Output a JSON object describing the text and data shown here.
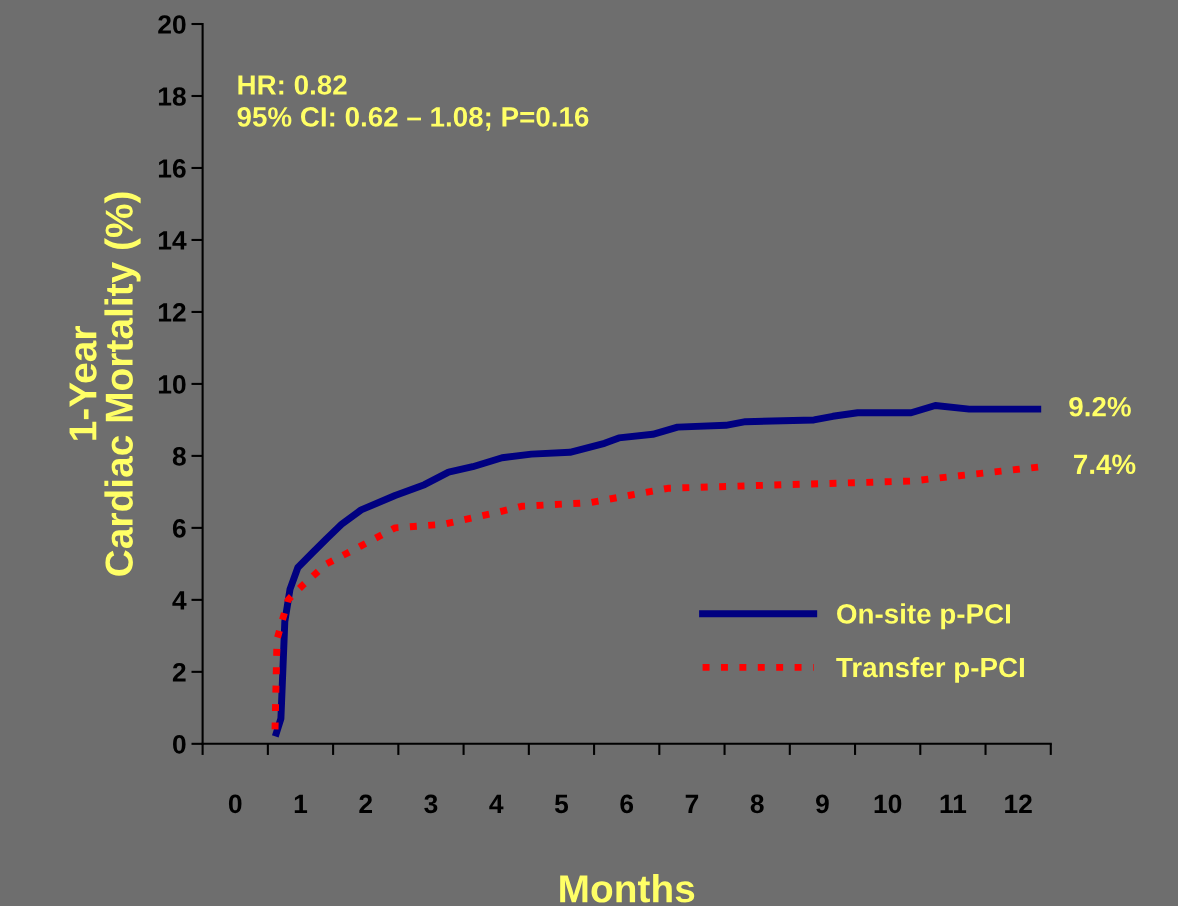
{
  "chart_data": {
    "type": "line",
    "xlabel": "Months",
    "ylabel": "1-Year\nCardiac Mortality (%)",
    "xlim": [
      -0.5,
      12.5
    ],
    "xticks": [
      {
        "value": -0.5,
        "label": null
      },
      0,
      {
        "value": 0.5,
        "label": null
      },
      1,
      {
        "value": 1.5,
        "label": null
      },
      2,
      {
        "value": 2.5,
        "label": null
      },
      3,
      {
        "value": 3.5,
        "label": null
      },
      4,
      {
        "value": 4.5,
        "label": null
      },
      5,
      {
        "value": 5.5,
        "label": null
      },
      6,
      {
        "value": 6.5,
        "label": null
      },
      7,
      {
        "value": 7.5,
        "label": null
      },
      8,
      {
        "value": 8.5,
        "label": null
      },
      9,
      {
        "value": 9.5,
        "label": null
      },
      10,
      {
        "value": 10.5,
        "label": null
      },
      11,
      {
        "value": 11.5,
        "label": null
      },
      12,
      {
        "value": 12.5,
        "label": null
      }
    ],
    "ylim": [
      0,
      20
    ],
    "yticks": [
      0,
      2,
      4,
      6,
      8,
      10,
      12,
      14,
      16,
      18,
      20
    ],
    "grid": false,
    "legend": "bottom right",
    "series": [
      {
        "name": "On-site p-PCI",
        "color": "#000080",
        "line_style": "solid",
        "x": [
          0.63,
          0.7,
          0.76,
          0.84,
          0.96,
          1.18,
          1.4,
          1.63,
          1.93,
          2.45,
          2.9,
          3.27,
          3.64,
          4.09,
          4.54,
          5.13,
          5.66,
          5.88,
          6.4,
          6.78,
          7.52,
          7.82,
          8.87,
          9.16,
          9.54,
          10.36,
          10.73,
          11.25,
          12.3
        ],
        "values": [
          0.3,
          0.7,
          3.4,
          4.3,
          4.9,
          5.3,
          5.7,
          6.1,
          6.5,
          6.9,
          7.2,
          7.55,
          7.7,
          7.95,
          8.05,
          8.1,
          8.35,
          8.5,
          8.6,
          8.8,
          8.85,
          8.95,
          9.0,
          9.1,
          9.2,
          9.2,
          9.4,
          9.3,
          9.3
        ]
      },
      {
        "name": "Transfer p-PCI",
        "color": "#ff0000",
        "line_style": "dotted",
        "x": [
          0.61,
          0.64,
          0.81,
          1.03,
          1.4,
          1.93,
          2.45,
          3.19,
          3.94,
          4.39,
          5.43,
          6.03,
          6.63,
          7.52,
          8.42,
          10.36,
          11.1,
          12.37
        ],
        "values": [
          0.4,
          2.9,
          4.0,
          4.4,
          5.0,
          5.5,
          6.0,
          6.1,
          6.4,
          6.6,
          6.7,
          6.9,
          7.1,
          7.15,
          7.2,
          7.3,
          7.45,
          7.7
        ]
      }
    ],
    "annotations": [
      "HR: 0.82\n95% CI: 0.62 – 1.08; P=0.16",
      {
        "text": "9.2%",
        "x": 12.3,
        "y": 9.3
      },
      {
        "text": "7.4%",
        "x": 12.37,
        "y": 7.7
      }
    ]
  }
}
